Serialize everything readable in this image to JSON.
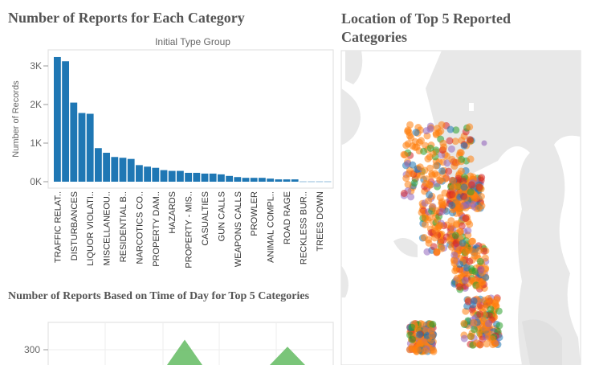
{
  "dashboard": {
    "title_bar_chart": "Number of Reports for Each Category",
    "title_map": "Location of Top 5 Reported Categories",
    "title_time_chart": "Number of Reports Based on Time of Day for Top 5 Categories"
  },
  "chart_data": [
    {
      "type": "bar",
      "title": "Initial Type Group",
      "ylabel": "Number of Records",
      "xlabel": "",
      "ylim": [
        0,
        3400
      ],
      "y_ticks": [
        "0K",
        "1K",
        "2K",
        "3K"
      ],
      "visible_labels": [
        "TRAFFIC RELAT..",
        "DISTURBANCES",
        "LIQUOR VIOLATI..",
        "MISCELLANEOU..",
        "RESIDENTIAL B..",
        "NARCOTICS CO..",
        "PROPERTY DAM..",
        "HAZARDS",
        "PROPERTY - MIS..",
        "CASUALTIES",
        "GUN CALLS",
        "WEAPONS CALLS",
        "PROWLER",
        "ANIMAL COMPL..",
        "ROAD RAGE",
        "RECKLESS BUR..",
        "TREES DOWN"
      ],
      "values": [
        3230,
        3120,
        2050,
        1780,
        1760,
        870,
        750,
        640,
        620,
        590,
        430,
        390,
        360,
        300,
        280,
        280,
        230,
        230,
        210,
        210,
        190,
        150,
        120,
        100,
        100,
        100,
        80,
        60,
        60,
        60,
        5,
        5,
        5,
        5
      ],
      "color": "#1f77b4",
      "grid": false
    },
    {
      "type": "area",
      "y_ticks": [
        "300"
      ],
      "peaks": [
        350,
        315
      ],
      "color": "#6cbf6a",
      "grid": true
    }
  ],
  "map": {
    "series_colors": [
      "#ff7f0e",
      "#1f77b4",
      "#2ca02c",
      "#d62728",
      "#9467bd"
    ]
  }
}
